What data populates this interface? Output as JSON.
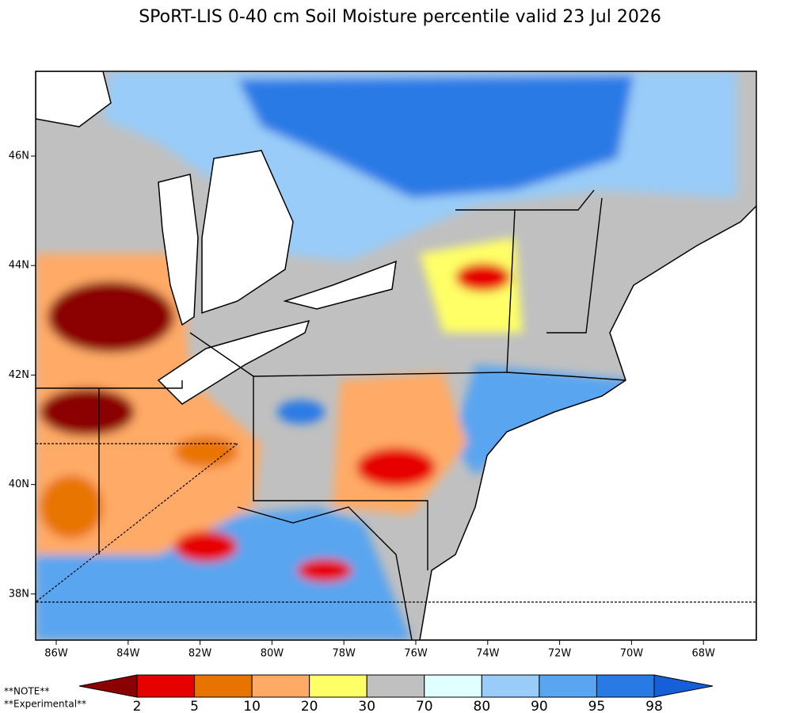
{
  "title": "SPoRT-LIS 0-40 cm Soil Moisture percentile valid 23 Jul 2026",
  "map": {
    "lon_labels": [
      "86W",
      "84W",
      "82W",
      "80W",
      "78W",
      "76W",
      "74W",
      "72W",
      "70W",
      "68W"
    ],
    "lat_labels": [
      "46N",
      "44N",
      "42N",
      "40N",
      "38N"
    ]
  },
  "colorbar": {
    "colors": [
      "#8b0000",
      "#e60000",
      "#e87400",
      "#ffaa66",
      "#ffff66",
      "#c0c0c0",
      "#e0ffff",
      "#99ccf8",
      "#5aa5f0",
      "#2a7ae6",
      "#1560d8"
    ],
    "labels": [
      "2",
      "5",
      "10",
      "20",
      "30",
      "70",
      "80",
      "90",
      "95",
      "98"
    ]
  },
  "notes": [
    "**NOTE**",
    "**Experimental**"
  ]
}
